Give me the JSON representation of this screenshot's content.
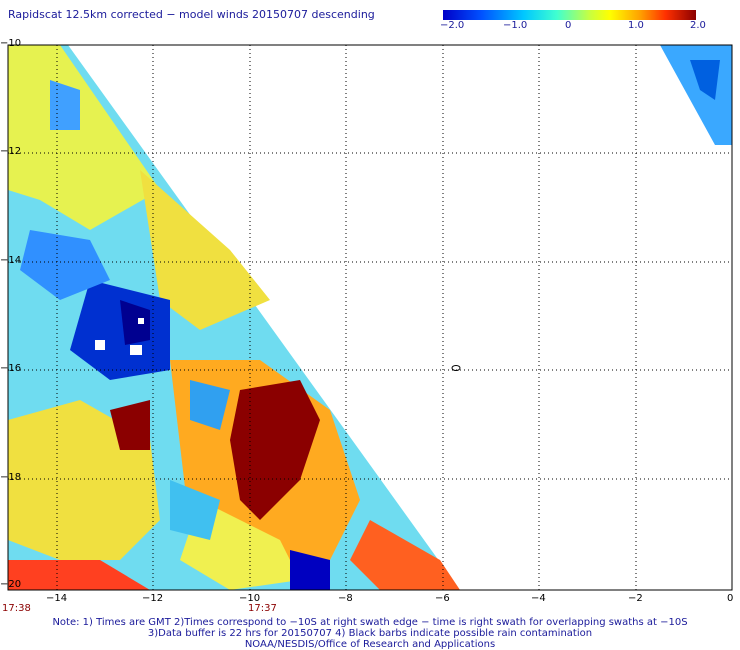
{
  "title": "Rapidscat 12.5km corrected − model winds 20150707 descending",
  "colorbar": {
    "ticks": [
      "−2.0",
      "−1.0",
      "0",
      "1.0",
      "2.0"
    ],
    "colors": [
      "#0000c8",
      "#0050ff",
      "#00c8ff",
      "#40ffd0",
      "#c8ff40",
      "#ffff00",
      "#ffa000",
      "#ff3000",
      "#8b0000"
    ]
  },
  "map": {
    "x_labels": [
      "−14",
      "−12",
      "−10",
      "−8",
      "−6",
      "−4",
      "−2",
      "0"
    ],
    "y_labels": [
      "−10",
      "−12",
      "−14",
      "−16",
      "−18",
      "−20"
    ],
    "time_labels": [
      "17:38",
      "17:37"
    ]
  },
  "notes": [
    "Note: 1) Times are GMT 2)Times correspond to −10S at right swath edge − time is right swath for overlapping swaths at −10S",
    "3)Data buffer is 22 hrs for 20150707 4) Black barbs indicate possible rain contamination",
    "NOAA/NESDIS/Office of Research and Applications"
  ]
}
